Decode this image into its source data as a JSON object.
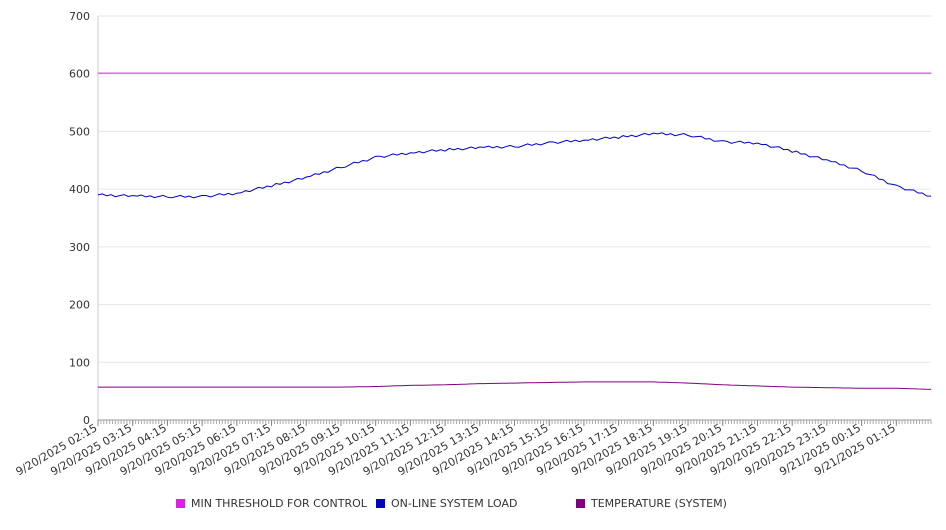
{
  "chart_data": {
    "type": "line",
    "title": "",
    "xlabel": "",
    "ylabel": "",
    "ylim": [
      0,
      700
    ],
    "yticks": [
      "0",
      "100",
      "200",
      "300",
      "400",
      "500",
      "600",
      "700"
    ],
    "x_tick_labels": [
      "9/20/2025 02:15",
      "9/20/2025 03:15",
      "9/20/2025 04:15",
      "9/20/2025 05:15",
      "9/20/2025 06:15",
      "9/20/2025 07:15",
      "9/20/2025 08:15",
      "9/20/2025 09:15",
      "9/20/2025 10:15",
      "9/20/2025 11:15",
      "9/20/2025 12:15",
      "9/20/2025 13:15",
      "9/20/2025 14:15",
      "9/20/2025 15:15",
      "9/20/2025 16:15",
      "9/20/2025 17:15",
      "9/20/2025 18:15",
      "9/20/2025 19:15",
      "9/20/2025 20:15",
      "9/20/2025 21:15",
      "9/20/2025 22:15",
      "9/20/2025 23:15",
      "9/21/2025 00:15",
      "9/21/2025 01:15"
    ],
    "x": [
      "9/20/2025 02:15",
      "9/20/2025 03:15",
      "9/20/2025 04:15",
      "9/20/2025 05:15",
      "9/20/2025 06:15",
      "9/20/2025 07:15",
      "9/20/2025 08:15",
      "9/20/2025 09:15",
      "9/20/2025 10:15",
      "9/20/2025 11:15",
      "9/20/2025 12:15",
      "9/20/2025 13:15",
      "9/20/2025 14:15",
      "9/20/2025 15:15",
      "9/20/2025 16:15",
      "9/20/2025 17:15",
      "9/20/2025 18:15",
      "9/20/2025 19:15",
      "9/20/2025 20:15",
      "9/20/2025 21:15",
      "9/20/2025 22:15",
      "9/20/2025 23:15",
      "9/21/2025 00:15",
      "9/21/2025 01:15",
      "9/21/2025 02:15"
    ],
    "series": [
      {
        "name": "MIN THRESHOLD FOR CONTROL",
        "color": "#e020e0",
        "values": [
          601,
          601,
          601,
          601,
          601,
          601,
          601,
          601,
          601,
          601,
          601,
          601,
          601,
          601,
          601,
          601,
          601,
          601,
          601,
          601,
          601,
          601,
          601,
          601,
          601
        ]
      },
      {
        "name": "ON-LINE SYSTEM LOAD",
        "color": "#0000cc",
        "values": [
          390,
          388,
          387,
          387,
          393,
          406,
          420,
          438,
          455,
          463,
          468,
          472,
          474,
          480,
          485,
          490,
          496,
          494,
          482,
          480,
          466,
          450,
          432,
          405,
          388
        ]
      },
      {
        "name": "TEMPERATURE (SYSTEM)",
        "color": "#800080",
        "values": [
          57,
          57,
          57,
          57,
          57,
          57,
          57,
          57,
          58,
          60,
          61,
          63,
          64,
          65,
          66,
          66,
          66,
          64,
          61,
          59,
          57,
          56,
          55,
          55,
          53
        ]
      }
    ],
    "grid": true,
    "legend_position": "bottom"
  }
}
